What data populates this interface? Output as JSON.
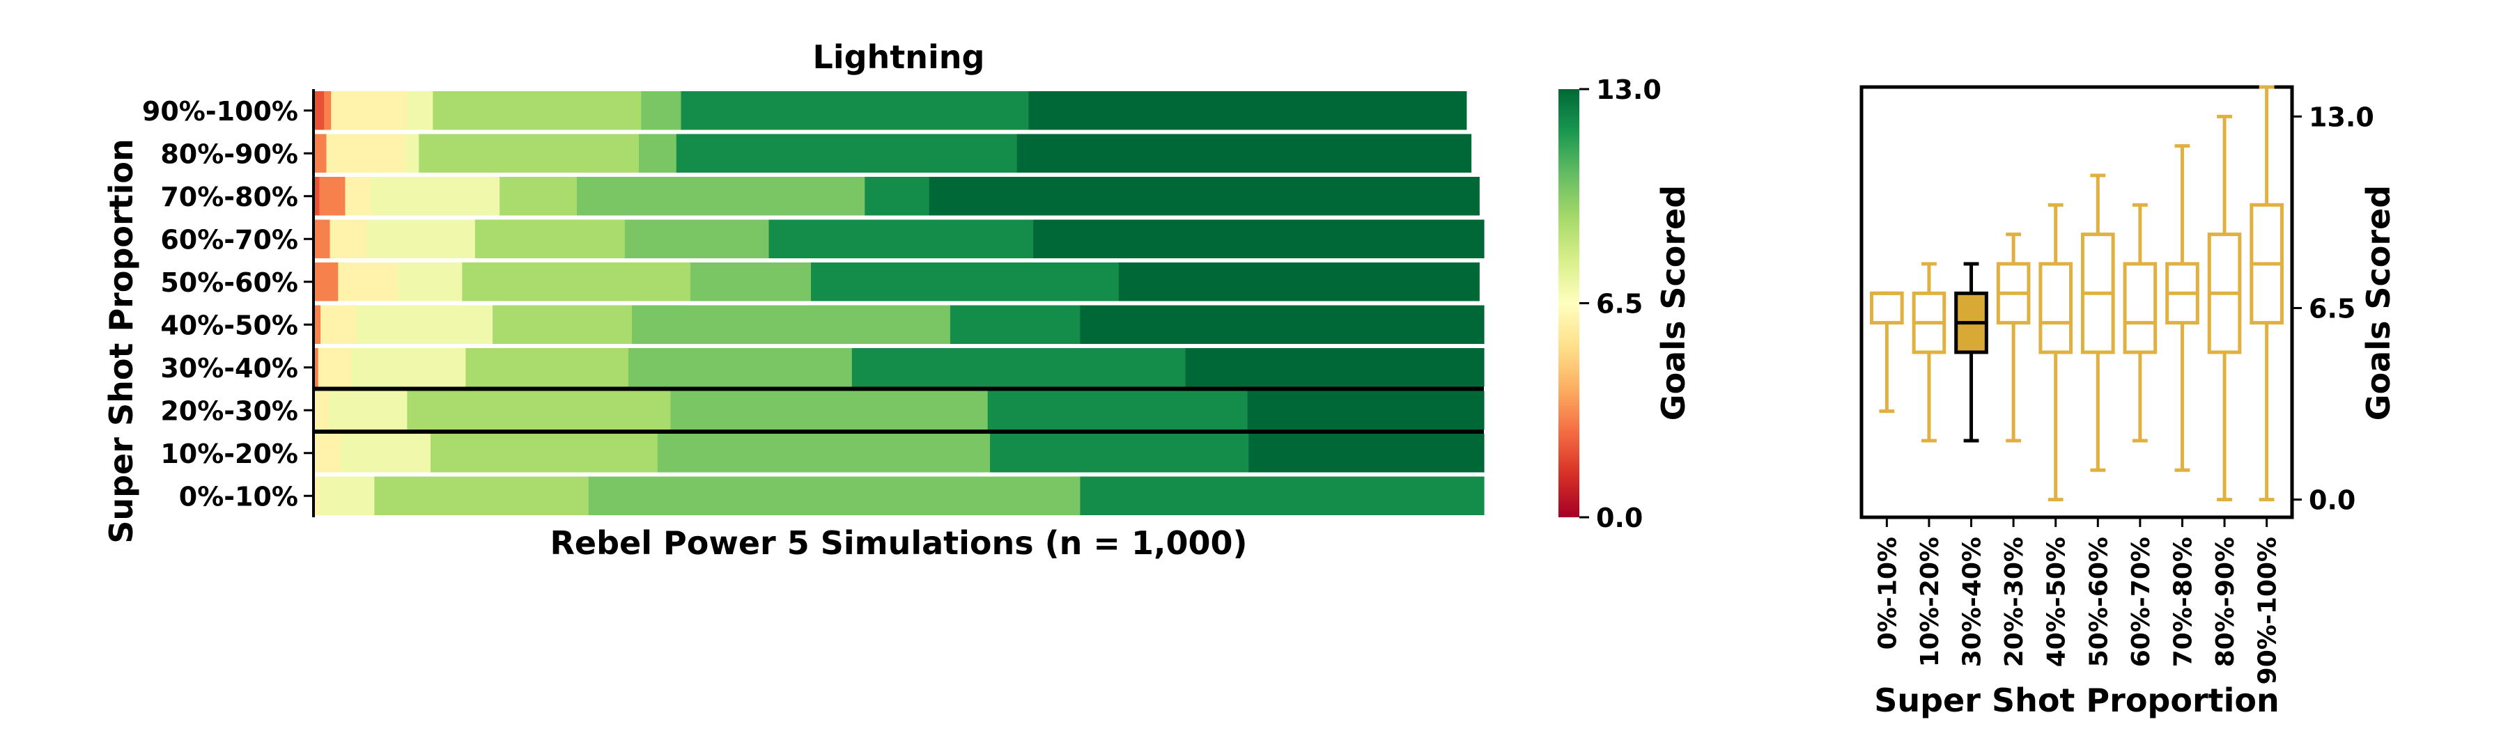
{
  "chart_data": [
    {
      "type": "stacked-bar",
      "orientation": "horizontal",
      "title": "Lightning",
      "xlabel": "Rebel Power 5 Simulations (n = 1,000)",
      "ylabel": "Super Shot Proportion",
      "xlim": [
        0,
        1000
      ],
      "categories": [
        "90%-100%",
        "80%-90%",
        "70%-80%",
        "60%-70%",
        "50%-60%",
        "40%-50%",
        "30%-40%",
        "20%-30%",
        "10%-20%",
        "0%-10%"
      ],
      "highlighted_category": "20%-30%",
      "colormap": "RdYlGn",
      "colorbar": {
        "label": "Goals Scored",
        "min": 0,
        "max": 13,
        "ticks": [
          "0.0",
          "6.5",
          "13.0"
        ]
      },
      "rows": [
        {
          "category": "90%-100%",
          "counts": [
            0,
            0,
            9,
            6,
            0,
            0,
            65,
            22,
            0,
            178,
            34,
            0,
            297,
            24,
            0,
            223,
            14,
            0,
            96,
            0,
            17
          ]
        },
        {
          "category": "80%-90%",
          "counts": [
            0,
            0,
            0,
            11,
            0,
            0,
            68,
            11,
            0,
            188,
            32,
            0,
            291,
            32,
            0,
            225,
            12,
            0,
            109,
            0,
            10
          ]
        },
        {
          "category": "70%-80%",
          "counts": [
            0,
            0,
            5,
            22,
            0,
            0,
            22,
            110,
            0,
            66,
            246,
            0,
            55,
            275,
            0,
            27,
            137,
            0,
            4,
            0,
            27
          ]
        },
        {
          "category": "60%-70%",
          "counts": [
            0,
            0,
            0,
            14,
            0,
            0,
            31,
            93,
            0,
            128,
            123,
            0,
            226,
            113,
            0,
            182,
            38,
            0,
            0,
            0,
            52
          ]
        },
        {
          "category": "50%-60%",
          "counts": [
            0,
            0,
            0,
            21,
            0,
            0,
            51,
            55,
            0,
            195,
            103,
            0,
            263,
            76,
            0,
            182,
            9,
            0,
            0,
            0,
            41
          ]
        },
        {
          "category": "40%-50%",
          "counts": [
            0,
            0,
            0,
            6,
            0,
            0,
            30,
            117,
            0,
            119,
            272,
            0,
            111,
            236,
            0,
            36,
            73,
            0,
            0,
            0,
            0
          ]
        },
        {
          "category": "30%-40%",
          "counts": [
            0,
            0,
            0,
            4,
            0,
            0,
            28,
            98,
            0,
            139,
            191,
            0,
            285,
            125,
            0,
            130,
            0,
            0,
            0,
            0,
            0
          ]
        },
        {
          "category": "20%-30%",
          "counts": [
            0,
            0,
            0,
            0,
            0,
            0,
            13,
            67,
            0,
            225,
            271,
            0,
            222,
            202,
            0,
            0,
            0,
            0,
            0,
            0,
            0
          ]
        },
        {
          "category": "10%-20%",
          "counts": [
            0,
            0,
            0,
            0,
            0,
            0,
            23,
            77,
            0,
            194,
            284,
            0,
            221,
            201,
            0,
            0,
            0,
            0,
            0,
            0,
            0
          ]
        },
        {
          "category": "0%-10%",
          "counts": [
            0,
            0,
            0,
            0,
            0,
            0,
            5,
            47,
            0,
            183,
            420,
            0,
            345,
            0,
            0,
            0,
            0,
            0,
            0,
            0,
            0
          ]
        }
      ]
    },
    {
      "type": "box",
      "xlabel": "Super Shot Proportion",
      "ylabel": "Goals Scored",
      "ylim": [
        -0.6,
        14
      ],
      "yticks": [
        "0.0",
        "6.5",
        "13.0"
      ],
      "categories": [
        "0%-10%",
        "10%-20%",
        "30%-40%",
        "20%-30%",
        "40%-50%",
        "50%-60%",
        "60%-70%",
        "70%-80%",
        "80%-90%",
        "90%-100%"
      ],
      "highlighted_category": "30%-40%",
      "box_color": "#e0b040",
      "highlight_fill": "#d9a935",
      "boxes": [
        {
          "label": "0%-10%",
          "whislo": 3,
          "q1": 6,
          "med": 7,
          "q3": 7,
          "whishi": 7
        },
        {
          "label": "10%-20%",
          "whislo": 2,
          "q1": 5,
          "med": 6,
          "q3": 7,
          "whishi": 8
        },
        {
          "label": "30%-40%",
          "whislo": 2,
          "q1": 5,
          "med": 6,
          "q3": 7,
          "whishi": 8
        },
        {
          "label": "20%-30%",
          "whislo": 2,
          "q1": 6,
          "med": 7,
          "q3": 8,
          "whishi": 9
        },
        {
          "label": "40%-50%",
          "whislo": 0,
          "q1": 5,
          "med": 6,
          "q3": 8,
          "whishi": 10
        },
        {
          "label": "50%-60%",
          "whislo": 1,
          "q1": 5,
          "med": 7,
          "q3": 9,
          "whishi": 11
        },
        {
          "label": "60%-70%",
          "whislo": 2,
          "q1": 5,
          "med": 6,
          "q3": 8,
          "whishi": 10
        },
        {
          "label": "70%-80%",
          "whislo": 1,
          "q1": 6,
          "med": 7,
          "q3": 8,
          "whishi": 12
        },
        {
          "label": "80%-90%",
          "whislo": 0,
          "q1": 5,
          "med": 7,
          "q3": 9,
          "whishi": 13
        },
        {
          "label": "90%-100%",
          "whislo": 0,
          "q1": 6,
          "med": 8,
          "q3": 10,
          "whishi": 14
        }
      ]
    }
  ]
}
